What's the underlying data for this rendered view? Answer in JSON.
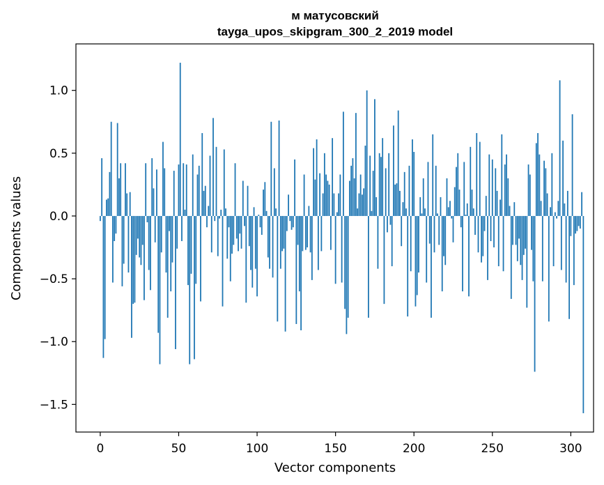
{
  "chart_data": {
    "type": "bar",
    "title": "м матусовский",
    "subtitle": "tayga_upos_skipgram_300_2_2019 model",
    "xlabel": "Vector components",
    "ylabel": "Components values",
    "xlim": [
      -15.5,
      314.5
    ],
    "ylim": [
      -1.72,
      1.37
    ],
    "xticks": [
      0,
      50,
      100,
      150,
      200,
      250,
      300
    ],
    "yticks": [
      -1.5,
      -1.0,
      -0.5,
      0.0,
      0.5,
      1.0
    ],
    "ytick_labels": [
      "−1.5",
      "−1.0",
      "−0.5",
      "0.0",
      "0.5",
      "1.0"
    ],
    "bar_color": "#1f77b4",
    "grid": false,
    "values": [
      -0.04,
      0.46,
      -1.13,
      -0.98,
      0.13,
      0.14,
      0.35,
      0.75,
      -0.53,
      -0.2,
      -0.14,
      0.74,
      0.3,
      0.42,
      -0.56,
      -0.38,
      0.42,
      0.18,
      -0.45,
      0.19,
      -0.97,
      -0.7,
      -0.69,
      -0.31,
      -0.18,
      -0.33,
      -0.39,
      -0.23,
      -0.67,
      0.42,
      -0.05,
      -0.43,
      -0.59,
      0.46,
      0.22,
      -0.21,
      0.37,
      -0.93,
      -1.18,
      -0.29,
      0.59,
      0.38,
      -0.45,
      -0.81,
      -0.12,
      -0.6,
      -0.37,
      0.36,
      -1.06,
      -0.26,
      0.41,
      1.22,
      -0.2,
      0.42,
      0.05,
      0.41,
      -0.55,
      -1.18,
      -0.46,
      0.49,
      -1.14,
      -0.54,
      0.33,
      0.4,
      -0.68,
      0.66,
      0.2,
      0.24,
      -0.09,
      0.08,
      0.48,
      -0.29,
      0.78,
      -0.04,
      0.55,
      -0.32,
      -0.02,
      0.05,
      -0.72,
      0.53,
      0.06,
      -0.34,
      -0.09,
      -0.52,
      -0.3,
      -0.23,
      0.42,
      -0.18,
      -0.28,
      -0.14,
      -0.26,
      0.28,
      -0.08,
      -0.69,
      0.24,
      -0.24,
      -0.43,
      -0.57,
      0.07,
      -0.42,
      -0.64,
      0.01,
      -0.09,
      -0.15,
      0.21,
      0.27,
      0.04,
      -0.33,
      -0.42,
      0.75,
      -0.49,
      0.38,
      0.06,
      -0.84,
      0.76,
      -0.42,
      -0.28,
      -0.26,
      -0.92,
      -0.12,
      0.17,
      -0.04,
      -0.11,
      -0.09,
      0.45,
      -0.86,
      -0.23,
      -0.6,
      -0.91,
      -0.28,
      0.33,
      -0.27,
      -0.25,
      0.08,
      -0.29,
      -0.51,
      0.54,
      0.29,
      0.61,
      -0.43,
      0.34,
      -0.28,
      0.18,
      0.5,
      0.33,
      0.28,
      0.25,
      -0.27,
      0.62,
      0.18,
      -0.54,
      0.03,
      0.18,
      0.33,
      -0.53,
      0.83,
      -0.74,
      -0.94,
      -0.81,
      0.28,
      0.4,
      0.46,
      0.3,
      0.82,
      0.06,
      0.18,
      0.33,
      0.17,
      0.22,
      0.56,
      1.0,
      -0.81,
      0.48,
      0.04,
      0.36,
      0.93,
      0.15,
      -0.42,
      0.5,
      0.47,
      0.62,
      -0.7,
      0.38,
      -0.13,
      0.5,
      -0.07,
      -0.4,
      0.72,
      0.25,
      0.26,
      0.84,
      0.2,
      -0.24,
      0.11,
      0.35,
      0.06,
      -0.8,
      0.4,
      -0.44,
      0.61,
      0.51,
      -0.72,
      -0.63,
      -0.45,
      0.15,
      0.02,
      0.3,
      0.06,
      -0.53,
      0.43,
      -0.22,
      -0.81,
      0.65,
      -0.29,
      0.4,
      0.02,
      -0.23,
      0.15,
      -0.6,
      -0.32,
      -0.39,
      0.3,
      0.07,
      0.12,
      -0.02,
      -0.21,
      0.23,
      0.39,
      0.5,
      0.21,
      -0.09,
      -0.6,
      0.43,
      0.01,
      0.1,
      -0.64,
      0.55,
      0.21,
      0.06,
      -0.15,
      0.66,
      -0.29,
      0.59,
      -0.37,
      -0.32,
      -0.12,
      0.16,
      -0.51,
      0.49,
      -0.2,
      0.45,
      -0.25,
      0.38,
      0.2,
      -0.4,
      0.13,
      0.65,
      -0.44,
      0.41,
      0.49,
      0.3,
      0.08,
      -0.66,
      -0.23,
      0.11,
      -0.23,
      -0.36,
      -0.18,
      -0.39,
      -0.51,
      -0.31,
      -0.26,
      -0.73,
      0.41,
      0.33,
      -0.27,
      -0.52,
      -1.24,
      0.58,
      0.66,
      0.49,
      0.12,
      -0.52,
      0.44,
      0.38,
      0.18,
      -0.84,
      0.07,
      0.5,
      -0.4,
      0.03,
      -0.02,
      0.12,
      1.08,
      -0.43,
      0.6,
      0.1,
      -0.53,
      0.2,
      -0.82,
      -0.16,
      0.81,
      -0.55,
      -0.14,
      -0.12,
      -0.08,
      -0.1,
      0.19,
      -1.57
    ]
  }
}
